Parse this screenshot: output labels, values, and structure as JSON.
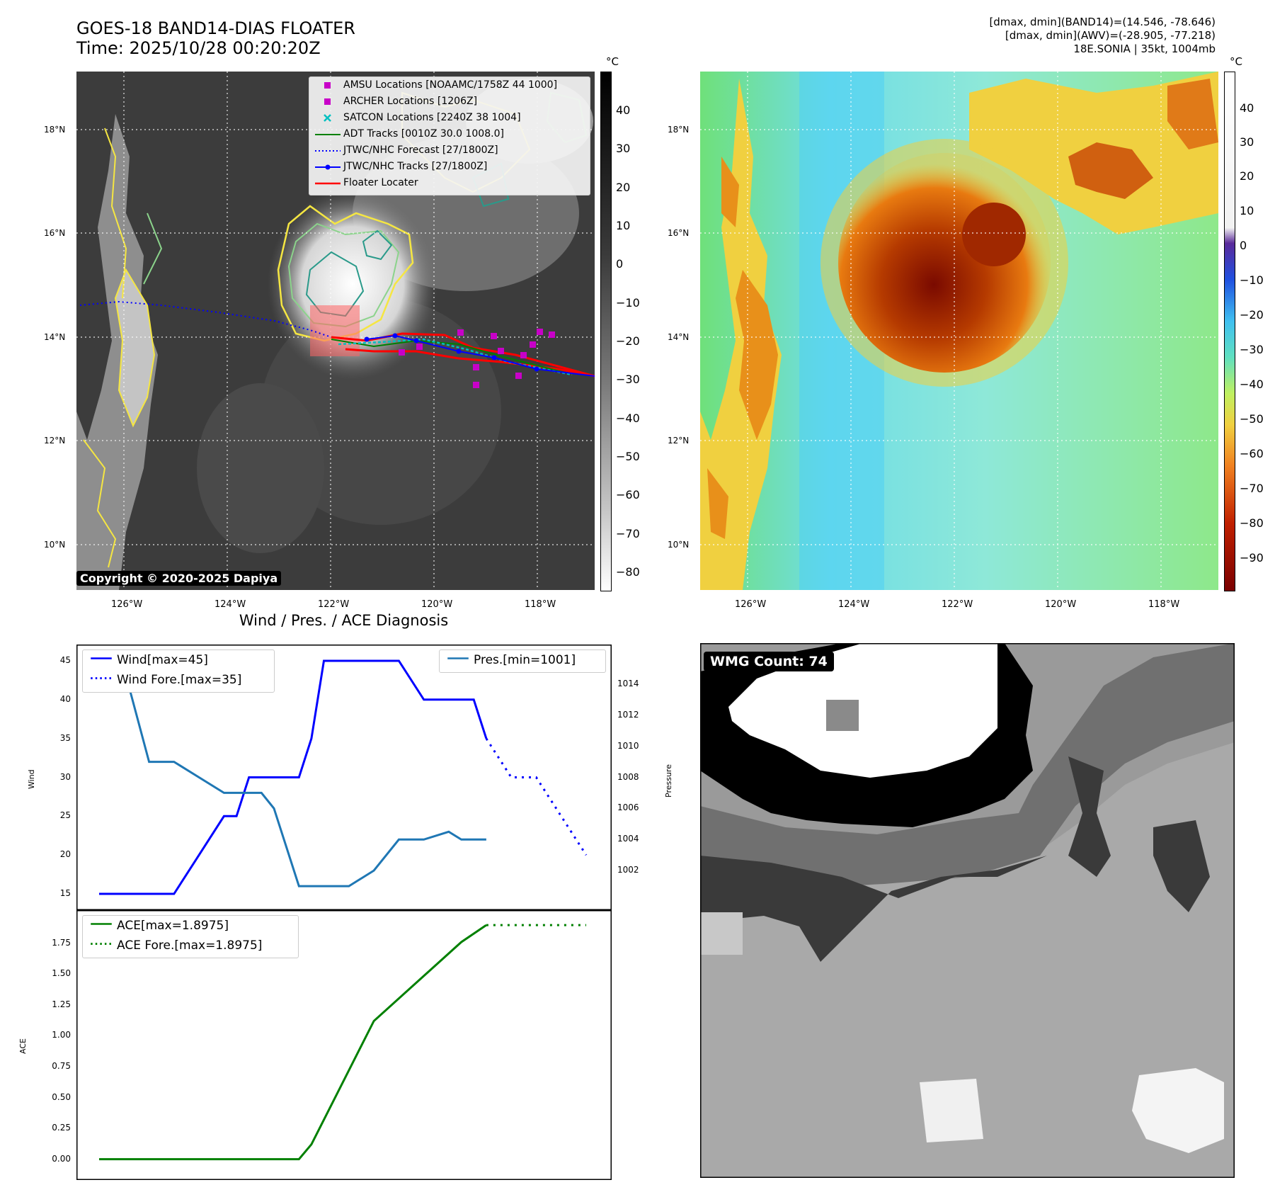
{
  "header": {
    "title_line1": "GOES-18 BAND14-DIAS FLOATER",
    "title_line2": "Time: 2025/10/28 00:20:20Z",
    "right_line1": "[dmax, dmin](BAND14)=(14.546, -78.646)",
    "right_line2": "[dmax, dmin](AWV)=(-28.905, -77.218)",
    "right_line3": "18E.SONIA | 35kt, 1004mb"
  },
  "map_ticks": {
    "lon": [
      "126°W",
      "124°W",
      "122°W",
      "120°W",
      "118°W"
    ],
    "lat": [
      "18°N",
      "16°N",
      "14°N",
      "12°N",
      "10°N"
    ]
  },
  "colorbar_gray": {
    "unit": "°C",
    "ticks": [
      "40",
      "30",
      "20",
      "10",
      "0",
      "−10",
      "−20",
      "−30",
      "−40",
      "−50",
      "−60",
      "−70",
      "−80"
    ]
  },
  "colorbar_color": {
    "unit": "°C",
    "ticks": [
      "40",
      "30",
      "20",
      "10",
      "0",
      "−10",
      "−20",
      "−30",
      "−40",
      "−50",
      "−60",
      "−70",
      "−80",
      "−90"
    ]
  },
  "map_legend": [
    {
      "label": "AMSU Locations [NOAAMC/1758Z 44 1000]",
      "symbol": "square",
      "color": "#c800c8"
    },
    {
      "label": "ARCHER Locations [1206Z]",
      "symbol": "square",
      "color": "#c800c8"
    },
    {
      "label": "SATCON Locations [2240Z 38 1004]",
      "symbol": "x",
      "color": "#00c0c0"
    },
    {
      "label": "ADT Tracks [0010Z 30.0 1008.0]",
      "symbol": "line",
      "color": "#008000"
    },
    {
      "label": "JTWC/NHC Forecast [27/1800Z]",
      "symbol": "dotted",
      "color": "#0000ff"
    },
    {
      "label": "JTWC/NHC Tracks [27/1800Z]",
      "symbol": "line-dot",
      "color": "#0000ff"
    },
    {
      "label": "Floater Locater",
      "symbol": "line",
      "color": "#ff0000"
    }
  ],
  "copyright": "Copyright © 2020-2025 Dapiya",
  "wmg_label": "WMG Count: 74",
  "chart_data": [
    {
      "type": "line",
      "title": "Wind / Pres. / ACE Diagnosis",
      "ylabel": "Wind",
      "ylabel_right": "Pressure",
      "ylim": [
        14,
        46
      ],
      "ylim_right": [
        1000,
        1016
      ],
      "yticks": [
        15,
        20,
        25,
        30,
        35,
        40,
        45
      ],
      "yticks_right": [
        1002,
        1004,
        1006,
        1008,
        1010,
        1012,
        1014
      ],
      "legend_left": [
        "Wind[max=45]",
        "Wind Fore.[max=35]"
      ],
      "legend_right": [
        "Pres.[min=1001]"
      ],
      "series": [
        {
          "name": "Wind[max=45]",
          "color": "#0000ff",
          "style": "solid",
          "axis": "left",
          "values": [
            [
              0,
              15
            ],
            [
              3,
              15
            ],
            [
              4,
              20
            ],
            [
              5,
              25
            ],
            [
              5.5,
              25
            ],
            [
              6,
              30
            ],
            [
              8,
              30
            ],
            [
              8.5,
              35
            ],
            [
              9,
              45
            ],
            [
              12,
              45
            ],
            [
              13,
              40
            ],
            [
              15,
              40
            ],
            [
              15.5,
              35
            ]
          ]
        },
        {
          "name": "Wind Fore.[max=35]",
          "color": "#0000ff",
          "style": "dotted",
          "axis": "left",
          "values": [
            [
              15.5,
              35
            ],
            [
              16.5,
              30
            ],
            [
              17.5,
              30
            ],
            [
              19.5,
              20
            ]
          ]
        },
        {
          "name": "Pres.[min=1001]",
          "color": "#1f77b4",
          "style": "solid",
          "axis": "right",
          "values": [
            [
              0,
              1015
            ],
            [
              1,
              1015
            ],
            [
              2,
              1009
            ],
            [
              3,
              1009
            ],
            [
              4,
              1008
            ],
            [
              5,
              1007
            ],
            [
              6.5,
              1007
            ],
            [
              7,
              1006
            ],
            [
              8,
              1001
            ],
            [
              9,
              1001
            ],
            [
              10,
              1001
            ],
            [
              10.5,
              1001.5
            ],
            [
              11,
              1002
            ],
            [
              12,
              1004
            ],
            [
              13,
              1004
            ],
            [
              14,
              1004.5
            ],
            [
              14.5,
              1004
            ],
            [
              15.5,
              1004
            ]
          ]
        }
      ]
    },
    {
      "type": "line",
      "ylabel": "ACE",
      "ylim": [
        -0.1,
        1.95
      ],
      "yticks": [
        "0.00",
        "0.25",
        "0.50",
        "0.75",
        "1.00",
        "1.25",
        "1.50",
        "1.75"
      ],
      "legend": [
        "ACE[max=1.8975]",
        "ACE Fore.[max=1.8975]"
      ],
      "series": [
        {
          "name": "ACE[max=1.8975]",
          "color": "#008000",
          "style": "solid",
          "values": [
            [
              0,
              0
            ],
            [
              8,
              0
            ],
            [
              8.5,
              0.12
            ],
            [
              11,
              1.12
            ],
            [
              14.5,
              1.76
            ],
            [
              15.5,
              1.8975
            ]
          ]
        },
        {
          "name": "ACE Fore.[max=1.8975]",
          "color": "#008000",
          "style": "dotted",
          "values": [
            [
              15.5,
              1.8975
            ],
            [
              19.5,
              1.8975
            ]
          ]
        }
      ]
    }
  ]
}
